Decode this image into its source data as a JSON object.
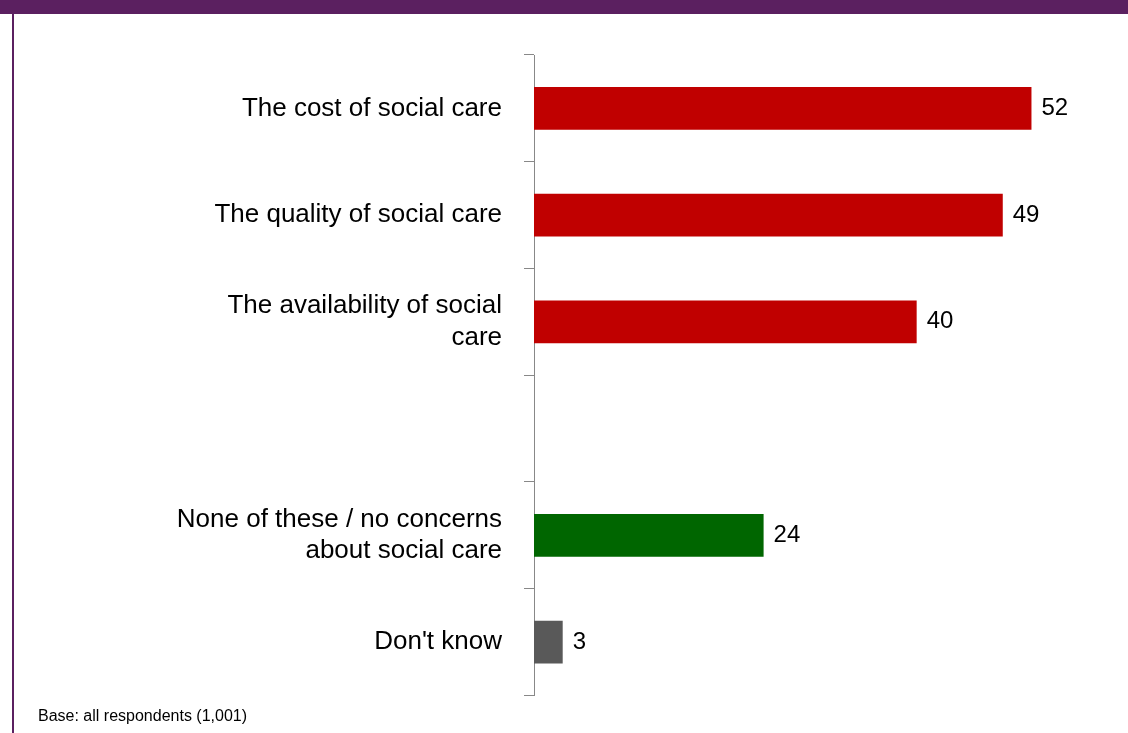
{
  "chart_data": {
    "type": "bar",
    "orientation": "horizontal",
    "categories": [
      "The cost of social care",
      "The quality of social care",
      "The availability of social care",
      null,
      "None of these / no concerns about social care",
      "Don't know"
    ],
    "values": [
      52,
      49,
      40,
      null,
      24,
      3
    ],
    "colors": [
      "#c00000",
      "#c00000",
      "#c00000",
      "#c00000",
      "#006600",
      "#595959"
    ],
    "data_labels": true,
    "annotations": [
      "Base: all respondents (1,001)"
    ]
  }
}
